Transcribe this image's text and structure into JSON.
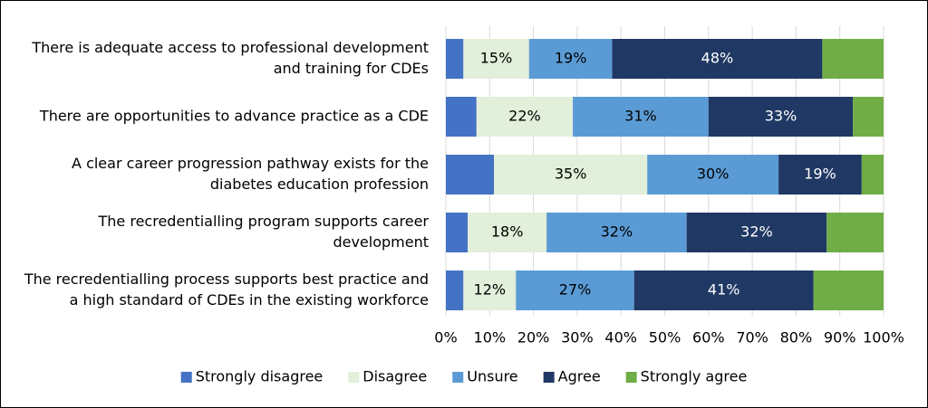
{
  "chart_data": {
    "type": "stacked-bar-horizontal",
    "categories": [
      [
        "There is adequate access to professional development",
        "and training for CDEs"
      ],
      [
        "There are opportunities to advance practice as a CDE"
      ],
      [
        "A clear career progression pathway exists for the",
        "diabetes education profession"
      ],
      [
        "The recredentialling program supports career",
        "development"
      ],
      [
        "The recredentialling process supports best practice and",
        "a high standard of CDEs in the existing workforce"
      ]
    ],
    "series": [
      {
        "name": "Strongly disagree",
        "color": "#4472c4",
        "values": [
          4,
          7,
          11,
          5,
          4
        ]
      },
      {
        "name": "Disagree",
        "color": "#e2efda",
        "values": [
          15,
          22,
          35,
          18,
          12
        ],
        "value_labels": [
          "15%",
          "22%",
          "35%",
          "18%",
          "12%"
        ]
      },
      {
        "name": "Unsure",
        "color": "#5b9bd5",
        "values": [
          19,
          31,
          30,
          32,
          27
        ],
        "value_labels": [
          "19%",
          "31%",
          "30%",
          "32%",
          "27%"
        ]
      },
      {
        "name": "Agree",
        "color": "#203864",
        "values": [
          48,
          33,
          19,
          32,
          41
        ],
        "value_labels": [
          "48%",
          "33%",
          "19%",
          "32%",
          "41%"
        ]
      },
      {
        "name": "Strongly agree",
        "color": "#70ad47",
        "values": [
          14,
          7,
          5,
          13,
          16
        ]
      }
    ],
    "xlim": [
      0,
      100
    ],
    "xticks": [
      {
        "value": 0,
        "label": "0%"
      },
      {
        "value": 10,
        "label": "10%"
      },
      {
        "value": 20,
        "label": "20%"
      },
      {
        "value": 30,
        "label": "30%"
      },
      {
        "value": 40,
        "label": "40%"
      },
      {
        "value": 50,
        "label": "50%"
      },
      {
        "value": 60,
        "label": "60%"
      },
      {
        "value": 70,
        "label": "70%"
      },
      {
        "value": 80,
        "label": "80%"
      },
      {
        "value": 90,
        "label": "90%"
      },
      {
        "value": 100,
        "label": "100%"
      }
    ],
    "grid": true,
    "legend": "bottom"
  }
}
